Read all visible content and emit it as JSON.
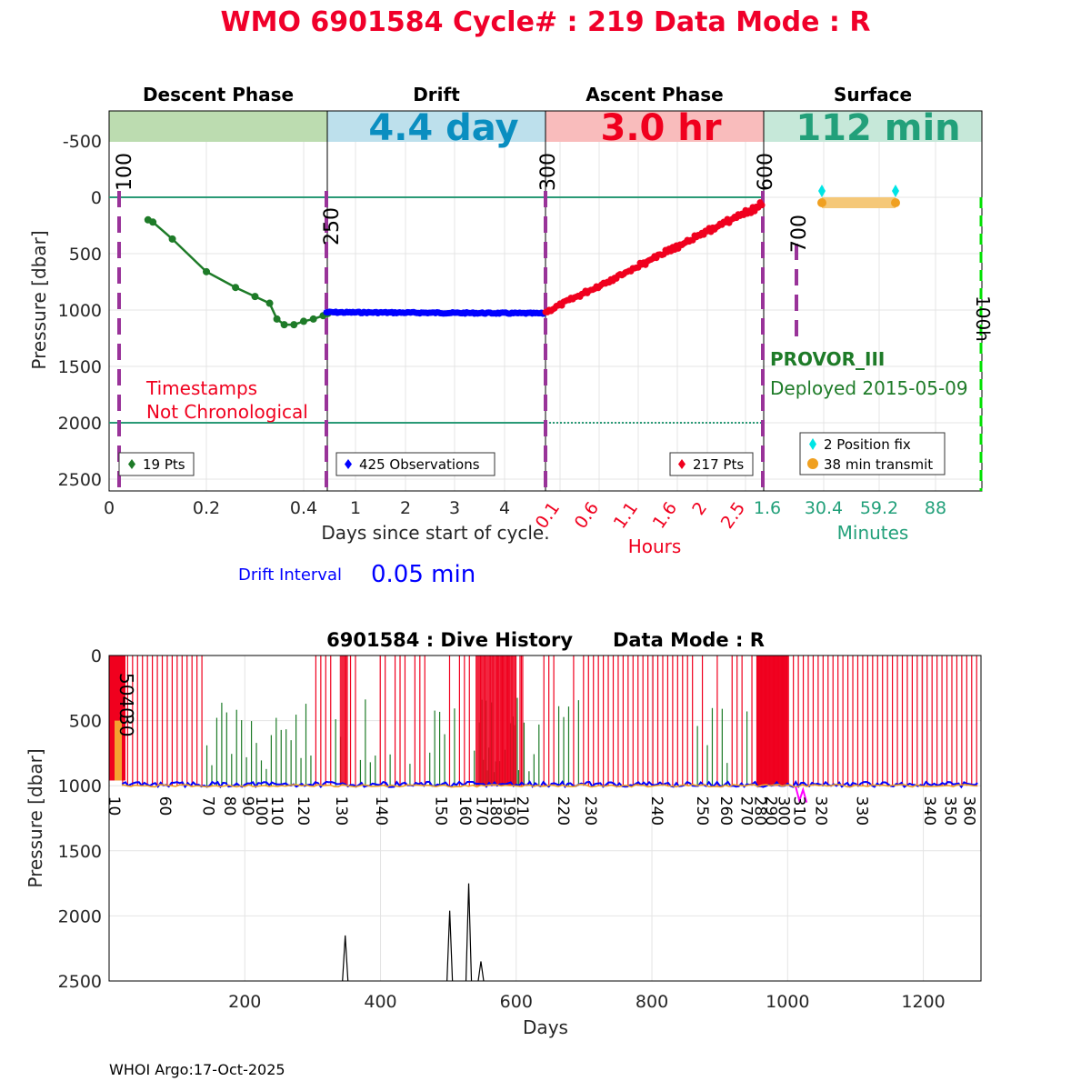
{
  "title": "WMO 6901584   Cycle# : 219   Data Mode : R",
  "footer": "WHOI Argo:17-Oct-2025",
  "colors": {
    "title": "#f0002a",
    "descent": "#1e7b28",
    "drift": "#0000ff",
    "ascent": "#f0001e",
    "surface_text": "#22a07a",
    "phase_line": "#2a9a76",
    "marker_line": "#993399",
    "green_dash": "#00e000",
    "fix": "#00e5e5",
    "transmit": "#f0a020",
    "transmit_bar": "#f5c878"
  },
  "top": {
    "ylabel": "Pressure [dbar]",
    "yticks": [
      "-500",
      "0",
      "500",
      "1000",
      "1500",
      "2000",
      "2500"
    ],
    "phases": [
      {
        "name": "Descent Phase",
        "duration": "",
        "band_color": "#bcdcb0",
        "text_color": "#1e7b28"
      },
      {
        "name": "Drift",
        "duration": "4.4 day",
        "band_color": "#bde0ec",
        "text_color": "#0a8ec0"
      },
      {
        "name": "Ascent Phase",
        "duration": "3.0 hr",
        "band_color": "#f9bcbc",
        "text_color": "#f0001e"
      },
      {
        "name": "Surface",
        "duration": "112 min",
        "band_color": "#c6e8d9",
        "text_color": "#22a07a"
      }
    ],
    "markers": [
      "100",
      "250",
      "300",
      "600",
      "700",
      "100h"
    ],
    "descent_xticks": [
      "0",
      "0.2",
      "0.4"
    ],
    "drift_xticks": [
      "1",
      "2",
      "3",
      "4"
    ],
    "days_label": "Days since start of cycle.",
    "ascent_xticks": [
      "0.1",
      "0.6",
      "1.1",
      "1.6",
      "2",
      "2.5"
    ],
    "hours_label": "Hours",
    "surface_xticks": [
      "1.6",
      "30.4",
      "59.2",
      "88"
    ],
    "minutes_label": "Minutes",
    "warning": [
      "Timestamps",
      "Not Chronological"
    ],
    "float_type": "PROVOR_III",
    "deployed": "Deployed 2015-05-09",
    "legends": {
      "descent": "19 Pts",
      "drift": "425 Observations",
      "ascent": "217 Pts",
      "fix": "2 Position fix",
      "transmit": "38 min transmit"
    },
    "drift_interval_label": "Drift Interval",
    "drift_interval_value": "0.05 min"
  },
  "chart_data": [
    {
      "type": "line",
      "title": "WMO 6901584   Cycle# : 219   Data Mode : R",
      "ylabel": "Pressure [dbar]",
      "ylim": [
        2600,
        -750
      ],
      "series": [
        {
          "name": "Descent",
          "x_days": [
            0.08,
            0.09,
            0.13,
            0.2,
            0.26,
            0.3,
            0.33,
            0.345,
            0.36,
            0.38,
            0.4,
            0.42,
            0.44,
            0.45
          ],
          "y": [
            200,
            220,
            370,
            660,
            800,
            880,
            940,
            1080,
            1130,
            1130,
            1100,
            1080,
            1050,
            1030
          ]
        },
        {
          "name": "Drift",
          "x_days": [
            0.5,
            4.9
          ],
          "y": [
            1020,
            1030
          ]
        },
        {
          "name": "Ascent",
          "x_hours": [
            0.0,
            2.8
          ],
          "y": [
            1020,
            60
          ]
        },
        {
          "name": "Surface",
          "x_minutes": [
            30.4,
            59.2
          ],
          "y": [
            50,
            50
          ]
        }
      ]
    },
    {
      "type": "line",
      "title": "6901584 : Dive History      Data Mode : R",
      "xlabel": "Days",
      "ylabel": "Pressure [dbar]",
      "xlim": [
        0,
        1285
      ],
      "ylim": [
        2500,
        0
      ],
      "xticks": [
        "200",
        "400",
        "600",
        "800",
        "1000",
        "1200"
      ],
      "yticks": [
        "0",
        "500",
        "1000",
        "1500",
        "2000",
        "2500"
      ],
      "cycle_labels": [
        {
          "label": "10",
          "day": 8
        },
        {
          "label": "60",
          "day": 83
        },
        {
          "label": "70",
          "day": 147
        },
        {
          "label": "80",
          "day": 178
        },
        {
          "label": "90",
          "day": 205
        },
        {
          "label": "100",
          "day": 225
        },
        {
          "label": "110",
          "day": 248
        },
        {
          "label": "120",
          "day": 287
        },
        {
          "label": "130",
          "day": 343
        },
        {
          "label": "140",
          "day": 402
        },
        {
          "label": "150",
          "day": 490
        },
        {
          "label": "160",
          "day": 525
        },
        {
          "label": "170",
          "day": 550
        },
        {
          "label": "180",
          "day": 570
        },
        {
          "label": "190",
          "day": 590
        },
        {
          "label": "210",
          "day": 610
        },
        {
          "label": "220",
          "day": 670
        },
        {
          "label": "230",
          "day": 710
        },
        {
          "label": "240",
          "day": 808
        },
        {
          "label": "250",
          "day": 875
        },
        {
          "label": "260",
          "day": 910
        },
        {
          "label": "270",
          "day": 940
        },
        {
          "label": "280",
          "day": 960
        },
        {
          "label": "290",
          "day": 976
        },
        {
          "label": "300",
          "day": 995
        },
        {
          "label": "310",
          "day": 1018
        },
        {
          "label": "320",
          "day": 1050
        },
        {
          "label": "330",
          "day": 1110
        },
        {
          "label": "340",
          "day": 1210
        },
        {
          "label": "350",
          "day": 1240
        },
        {
          "label": "360",
          "day": 1268
        }
      ],
      "annotation": "5040",
      "annotation2": "30",
      "deep_profiles": [
        {
          "day": 348,
          "depth": 2150
        },
        {
          "day": 502,
          "depth": 1960
        },
        {
          "day": 530,
          "depth": 1750
        },
        {
          "day": 548,
          "depth": 2350
        }
      ]
    }
  ]
}
